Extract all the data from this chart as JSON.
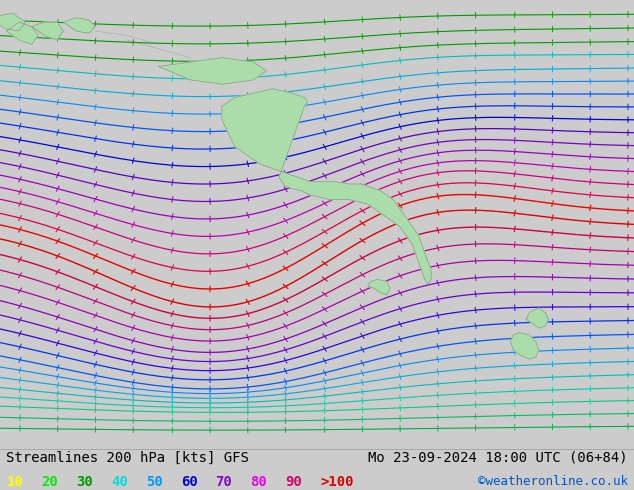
{
  "title_left": "Streamlines 200 hPa [kts] GFS",
  "title_right": "Mo 23-09-2024 18:00 UTC (06+84)",
  "copyright": "©weatheronline.co.uk",
  "legend_values": [
    "10",
    "20",
    "30",
    "40",
    "50",
    "60",
    "70",
    "80",
    "90",
    ">100"
  ],
  "legend_colors": [
    "#ffff00",
    "#00ee00",
    "#009900",
    "#00dddd",
    "#0099ff",
    "#0000ee",
    "#8800cc",
    "#ee00ee",
    "#dd0066",
    "#dd0000"
  ],
  "background_color": "#cccccc",
  "land_color": "#aaddaa",
  "ocean_color": "#cccccc",
  "text_color": "#000000",
  "title_fontsize": 10,
  "legend_fontsize": 10,
  "figsize": [
    6.34,
    4.9
  ],
  "dpi": 100,
  "streamline_colors_top_to_bottom": [
    "#00aa00",
    "#00aa00",
    "#00aa00",
    "#00cccc",
    "#00cccc",
    "#00cccc",
    "#0088ff",
    "#0055ff",
    "#0000dd",
    "#6600bb",
    "#8800cc",
    "#aa00aa",
    "#cc0077",
    "#dd0033",
    "#dd0000",
    "#dd0000",
    "#cc0055",
    "#aa00aa",
    "#8800cc",
    "#6600bb",
    "#0000dd",
    "#0055ff",
    "#0088ff",
    "#00bbbb",
    "#00cccc",
    "#00bb88",
    "#00aa66",
    "#00cc44",
    "#00bb33"
  ]
}
